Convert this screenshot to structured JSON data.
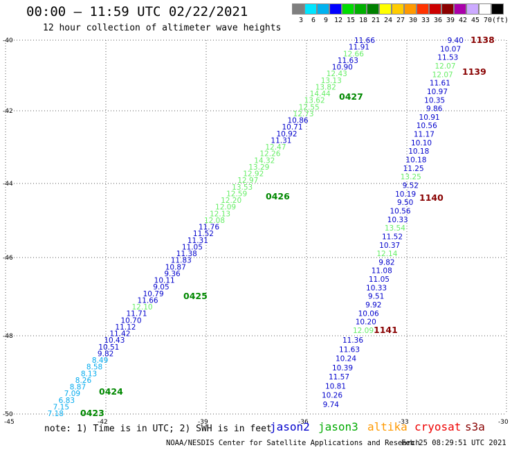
{
  "header": {
    "title": "00:00 – 11:59 UTC 02/22/2021",
    "subtitle": "12 hour collection of altimeter wave heights"
  },
  "scale": {
    "colors": [
      "#7f7f7f",
      "#00e5ff",
      "#00b2f0",
      "#0000ff",
      "#00dd00",
      "#00b000",
      "#008000",
      "#ffff00",
      "#ffcc00",
      "#ff9900",
      "#ff3300",
      "#cc0000",
      "#8b0000",
      "#aa00aa",
      "#ccaaff",
      "#ffffff",
      "#000000"
    ],
    "labels": [
      "3",
      "6",
      "9",
      "12",
      "15",
      "18",
      "21",
      "24",
      "27",
      "30",
      "33",
      "36",
      "39",
      "42",
      "45",
      "70",
      "(ft)"
    ]
  },
  "map": {
    "lon_range": [
      -45,
      -30
    ],
    "lat_range": [
      -50,
      -40
    ],
    "lon_ticks": [
      "-45",
      "-42",
      "-39",
      "-36",
      "-33",
      "-30"
    ],
    "lat_ticks": [
      "-40",
      "-42",
      "-44",
      "-46",
      "-48",
      "-50"
    ],
    "grid": true
  },
  "tracks": [
    {
      "name": "track-west",
      "points": [
        {
          "v": "11.66",
          "c": "#0000cc"
        },
        {
          "v": "11.91",
          "c": "#0000cc"
        },
        {
          "v": "12.66",
          "c": "#66ee66"
        },
        {
          "v": "11.63",
          "c": "#0000cc"
        },
        {
          "v": "10.90",
          "c": "#0000cc"
        },
        {
          "v": "12.43",
          "c": "#66ee66"
        },
        {
          "v": "13.13",
          "c": "#66ee66"
        },
        {
          "v": "13.82",
          "c": "#66ee66"
        },
        {
          "v": "14.44",
          "c": "#66ee66"
        },
        {
          "v": "13.62",
          "c": "#66ee66"
        },
        {
          "v": "12.55",
          "c": "#66ee66"
        },
        {
          "v": "12.73",
          "c": "#66ee66"
        },
        {
          "v": "10.86",
          "c": "#0000cc"
        },
        {
          "v": "10.71",
          "c": "#0000cc"
        },
        {
          "v": "10.92",
          "c": "#0000cc"
        },
        {
          "v": "11.31",
          "c": "#0000cc"
        },
        {
          "v": "12.47",
          "c": "#66ee66"
        },
        {
          "v": "12.26",
          "c": "#66ee66"
        },
        {
          "v": "14.32",
          "c": "#66ee66"
        },
        {
          "v": "13.29",
          "c": "#66ee66"
        },
        {
          "v": "12.92",
          "c": "#66ee66"
        },
        {
          "v": "12.97",
          "c": "#66ee66"
        },
        {
          "v": "13.53",
          "c": "#66ee66"
        },
        {
          "v": "12.59",
          "c": "#66ee66"
        },
        {
          "v": "12.20",
          "c": "#66ee66"
        },
        {
          "v": "12.09",
          "c": "#66ee66"
        },
        {
          "v": "12.13",
          "c": "#66ee66"
        },
        {
          "v": "12.08",
          "c": "#66ee66"
        },
        {
          "v": "11.76",
          "c": "#0000cc"
        },
        {
          "v": "11.52",
          "c": "#0000cc"
        },
        {
          "v": "11.31",
          "c": "#0000cc"
        },
        {
          "v": "11.05",
          "c": "#0000cc"
        },
        {
          "v": "11.38",
          "c": "#0000cc"
        },
        {
          "v": "11.83",
          "c": "#0000cc"
        },
        {
          "v": "10.87",
          "c": "#0000cc"
        },
        {
          "v": "9.36",
          "c": "#0000cc"
        },
        {
          "v": "10.11",
          "c": "#0000cc"
        },
        {
          "v": "9.05",
          "c": "#0000cc"
        },
        {
          "v": "10.79",
          "c": "#0000cc"
        },
        {
          "v": "11.66",
          "c": "#0000cc"
        },
        {
          "v": "12.10",
          "c": "#66ee66"
        },
        {
          "v": "11.71",
          "c": "#0000cc"
        },
        {
          "v": "10.70",
          "c": "#0000cc"
        },
        {
          "v": "11.12",
          "c": "#0000cc"
        },
        {
          "v": "11.42",
          "c": "#0000cc"
        },
        {
          "v": "10.43",
          "c": "#0000cc"
        },
        {
          "v": "10.51",
          "c": "#0000cc"
        },
        {
          "v": "9.82",
          "c": "#0000cc"
        },
        {
          "v": "8.49",
          "c": "#00aaee"
        },
        {
          "v": "8.58",
          "c": "#00aaee"
        },
        {
          "v": "8.13",
          "c": "#00aaee"
        },
        {
          "v": "8.26",
          "c": "#00aaee"
        },
        {
          "v": "8.87",
          "c": "#00aaee"
        },
        {
          "v": "7.09",
          "c": "#00aaee"
        },
        {
          "v": "6.83",
          "c": "#00aaee"
        },
        {
          "v": "7.15",
          "c": "#00aaee"
        },
        {
          "v": "7.18",
          "c": "#00aaee"
        }
      ]
    },
    {
      "name": "track-east-upper",
      "points": [
        {
          "v": "9.40",
          "c": "#0000cc"
        },
        {
          "v": "10.07",
          "c": "#0000cc"
        },
        {
          "v": "11.53",
          "c": "#0000cc"
        },
        {
          "v": "12.07",
          "c": "#66ee66"
        },
        {
          "v": "12.07",
          "c": "#66ee66"
        },
        {
          "v": "11.61",
          "c": "#0000cc"
        },
        {
          "v": "10.97",
          "c": "#0000cc"
        },
        {
          "v": "10.35",
          "c": "#0000cc"
        },
        {
          "v": "9.86",
          "c": "#0000cc"
        },
        {
          "v": "10.91",
          "c": "#0000cc"
        },
        {
          "v": "10.56",
          "c": "#0000cc"
        },
        {
          "v": "11.17",
          "c": "#0000cc"
        },
        {
          "v": "10.10",
          "c": "#0000cc"
        },
        {
          "v": "10.18",
          "c": "#0000cc"
        },
        {
          "v": "10.18",
          "c": "#0000cc"
        },
        {
          "v": "11.25",
          "c": "#0000cc"
        },
        {
          "v": "13.25",
          "c": "#66ee66"
        },
        {
          "v": "9.52",
          "c": "#0000cc"
        },
        {
          "v": "10.19",
          "c": "#0000cc"
        },
        {
          "v": "9.50",
          "c": "#0000cc"
        },
        {
          "v": "10.56",
          "c": "#0000cc"
        },
        {
          "v": "10.33",
          "c": "#0000cc"
        },
        {
          "v": "13.54",
          "c": "#66ee66"
        },
        {
          "v": "11.52",
          "c": "#0000cc"
        },
        {
          "v": "10.37",
          "c": "#0000cc"
        },
        {
          "v": "12.14",
          "c": "#66ee66"
        },
        {
          "v": "9.82",
          "c": "#0000cc"
        },
        {
          "v": "11.08",
          "c": "#0000cc"
        },
        {
          "v": "11.05",
          "c": "#0000cc"
        },
        {
          "v": "10.33",
          "c": "#0000cc"
        },
        {
          "v": "9.51",
          "c": "#0000cc"
        },
        {
          "v": "9.92",
          "c": "#0000cc"
        },
        {
          "v": "10.06",
          "c": "#0000cc"
        },
        {
          "v": "10.20",
          "c": "#0000cc"
        },
        {
          "v": "12.09",
          "c": "#66ee66"
        }
      ]
    },
    {
      "name": "track-east-lower",
      "points": [
        {
          "v": "11.36",
          "c": "#0000cc"
        },
        {
          "v": "11.63",
          "c": "#0000cc"
        },
        {
          "v": "10.24",
          "c": "#0000cc"
        },
        {
          "v": "10.39",
          "c": "#0000cc"
        },
        {
          "v": "11.57",
          "c": "#0000cc"
        },
        {
          "v": "10.81",
          "c": "#0000cc"
        },
        {
          "v": "10.26",
          "c": "#0000cc"
        },
        {
          "v": "9.74",
          "c": "#0000cc"
        }
      ]
    }
  ],
  "time_labels": [
    {
      "t": "1138",
      "c": "#880000"
    },
    {
      "t": "1139",
      "c": "#880000"
    },
    {
      "t": "0427",
      "c": "#008800"
    },
    {
      "t": "0426",
      "c": "#008800"
    },
    {
      "t": "1140",
      "c": "#880000"
    },
    {
      "t": "0425",
      "c": "#008800"
    },
    {
      "t": "1141",
      "c": "#880000"
    },
    {
      "t": "0424",
      "c": "#008800"
    },
    {
      "t": "0423",
      "c": "#008800"
    }
  ],
  "footer": {
    "note": "note: 1) Time is in UTC; 2) SWH is in feet",
    "legend": [
      {
        "name": "jason2",
        "color": "#0000cc"
      },
      {
        "name": "jason3",
        "color": "#00aa00"
      },
      {
        "name": "altika",
        "color": "#ff9900"
      },
      {
        "name": "cryosat",
        "color": "#ee0000"
      },
      {
        "name": "s3a",
        "color": "#880000"
      }
    ],
    "credit": "NOAA/NESDIS Center for Satellite Applications and Research",
    "timestamp": "Feb 25 08:29:51 UTC 2021"
  }
}
